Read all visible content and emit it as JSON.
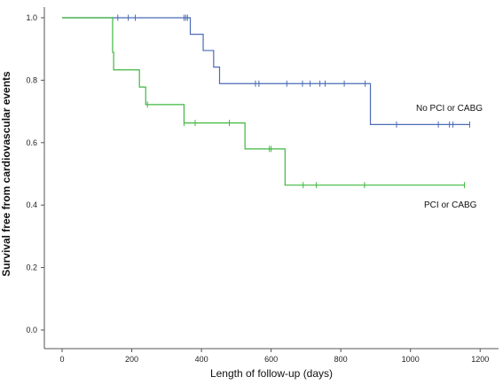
{
  "chart_data": {
    "type": "line",
    "subtype": "kaplan-meier-step",
    "xlabel": "Length of follow-up (days)",
    "ylabel": "Survival free from cardiovascular events",
    "xlim": [
      0,
      1250
    ],
    "ylim": [
      0.0,
      1.0
    ],
    "xticks": [
      0,
      200,
      400,
      600,
      800,
      1000,
      1200
    ],
    "yticks": [
      0.0,
      0.2,
      0.4,
      0.6,
      0.8,
      1.0
    ],
    "ytick_labels": [
      "0.0",
      "0.2",
      "0.4",
      "0.6",
      "0.8",
      "1.0"
    ],
    "grid": false,
    "series": [
      {
        "name": "No PCI or CABG",
        "color": "#4a6bb5",
        "steps": [
          [
            0,
            1.0
          ],
          [
            368,
            0.947
          ],
          [
            405,
            0.895
          ],
          [
            435,
            0.842
          ],
          [
            452,
            0.789
          ],
          [
            885,
            0.658
          ],
          [
            1170,
            0.658
          ]
        ],
        "censored": [
          [
            160,
            1.0
          ],
          [
            190,
            1.0
          ],
          [
            210,
            1.0
          ],
          [
            350,
            1.0
          ],
          [
            355,
            1.0
          ],
          [
            360,
            1.0
          ],
          [
            555,
            0.789
          ],
          [
            565,
            0.789
          ],
          [
            645,
            0.789
          ],
          [
            690,
            0.789
          ],
          [
            712,
            0.789
          ],
          [
            740,
            0.789
          ],
          [
            755,
            0.789
          ],
          [
            810,
            0.789
          ],
          [
            870,
            0.789
          ],
          [
            960,
            0.658
          ],
          [
            1080,
            0.658
          ],
          [
            1112,
            0.658
          ],
          [
            1122,
            0.658
          ],
          [
            1170,
            0.658
          ]
        ]
      },
      {
        "name": "PCI or CABG",
        "color": "#3fb83f",
        "steps": [
          [
            0,
            1.0
          ],
          [
            145,
            0.889
          ],
          [
            148,
            0.833
          ],
          [
            222,
            0.778
          ],
          [
            240,
            0.722
          ],
          [
            350,
            0.663
          ],
          [
            525,
            0.58
          ],
          [
            640,
            0.464
          ],
          [
            1155,
            0.464
          ]
        ],
        "censored": [
          [
            245,
            0.722
          ],
          [
            350,
            0.663
          ],
          [
            382,
            0.663
          ],
          [
            480,
            0.663
          ],
          [
            595,
            0.58
          ],
          [
            600,
            0.58
          ],
          [
            692,
            0.464
          ],
          [
            730,
            0.464
          ],
          [
            868,
            0.464
          ],
          [
            1155,
            0.464
          ]
        ]
      }
    ]
  }
}
